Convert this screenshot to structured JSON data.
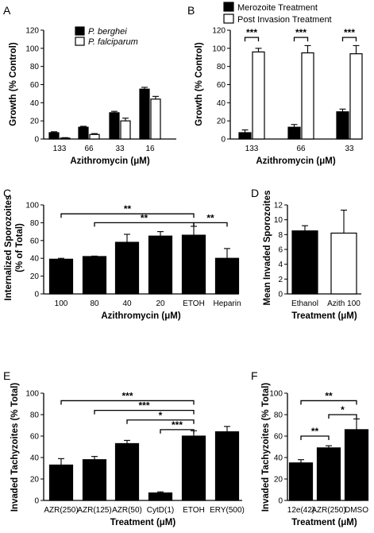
{
  "chart_data": [
    {
      "panel": "A",
      "type": "bar",
      "xlabel": "Azithromycin (μM)",
      "ylabel": "Growth (% Control)",
      "ylim": [
        0,
        120
      ],
      "yticks": [
        0,
        20,
        40,
        60,
        80,
        100,
        120
      ],
      "categories": [
        "133",
        "66",
        "33",
        "16"
      ],
      "series": [
        {
          "name": "P. berghei",
          "fill": "#000000",
          "values": [
            7,
            13,
            29,
            55
          ],
          "errors": [
            1,
            1,
            1.5,
            2
          ]
        },
        {
          "name": "P. falciparum",
          "fill": "#ffffff",
          "values": [
            1,
            5,
            20,
            44
          ],
          "errors": [
            0.5,
            1,
            3,
            3
          ]
        }
      ],
      "legend": "top-left"
    },
    {
      "panel": "B",
      "type": "bar",
      "xlabel": "Azithromycin (μM)",
      "ylabel": "Growth (% Control)",
      "ylim": [
        0,
        120
      ],
      "yticks": [
        0,
        20,
        40,
        60,
        80,
        100,
        120
      ],
      "categories": [
        "133",
        "66",
        "33"
      ],
      "series": [
        {
          "name": "Merozoite Treatment",
          "fill": "#000000",
          "values": [
            7,
            13,
            30
          ],
          "errors": [
            3,
            3,
            3
          ]
        },
        {
          "name": "Post Invasion Treatment",
          "fill": "#ffffff",
          "values": [
            96,
            95,
            94
          ],
          "errors": [
            4,
            8,
            9
          ]
        }
      ],
      "legend": "top",
      "significance": [
        {
          "label": "***",
          "from": 0,
          "to": 0
        },
        {
          "label": "***",
          "from": 1,
          "to": 1
        },
        {
          "label": "***",
          "from": 2,
          "to": 2
        }
      ]
    },
    {
      "panel": "C",
      "type": "bar",
      "xlabel": "Azithromycin (μM)",
      "ylabel_lines": [
        "Internalized Sporozoites",
        "(% of Total)"
      ],
      "ylim": [
        0,
        100
      ],
      "yticks": [
        0,
        20,
        40,
        60,
        80,
        100
      ],
      "categories": [
        "100",
        "80",
        "40",
        "20",
        "ETOH",
        "Heparin"
      ],
      "series": [
        {
          "fill": "#000000",
          "values": [
            39,
            42,
            58,
            65,
            66,
            40
          ],
          "errors": [
            1,
            0.5,
            9,
            5,
            10,
            11
          ]
        }
      ],
      "significance": [
        {
          "label": "**",
          "from": 0,
          "to": 4,
          "level": 90
        },
        {
          "label": "**",
          "from": 1,
          "to": 4,
          "level": 80
        },
        {
          "label": "**",
          "from": 4,
          "to": 5,
          "level": 80
        }
      ]
    },
    {
      "panel": "D",
      "type": "bar",
      "xlabel": "Treatment (μM)",
      "ylabel": "Mean Invaded Sporozoites",
      "ylim": [
        0,
        12
      ],
      "yticks": [
        0,
        2,
        4,
        6,
        8,
        10,
        12
      ],
      "categories": [
        "Ethanol",
        "Azith 100"
      ],
      "series": [
        {
          "fills": [
            "#000000",
            "#ffffff"
          ],
          "values": [
            8.5,
            8.2
          ],
          "errors": [
            0.7,
            3.1
          ]
        }
      ]
    },
    {
      "panel": "E",
      "type": "bar",
      "xlabel": "Treatment (μM)",
      "ylabel": "Invaded Tachyzoites (% Total)",
      "ylim": [
        0,
        100
      ],
      "yticks": [
        0,
        20,
        40,
        60,
        80,
        100
      ],
      "categories": [
        "AZR(250)",
        "AZR(125)",
        "AZR(50)",
        "CytD(1)",
        "ETOH",
        "ERY(500)"
      ],
      "series": [
        {
          "fill": "#000000",
          "values": [
            33,
            38,
            53,
            7,
            60,
            64
          ],
          "errors": [
            6,
            3,
            3,
            1,
            5,
            5
          ]
        }
      ],
      "significance": [
        {
          "label": "***",
          "from": 0,
          "to": 4,
          "level": 93
        },
        {
          "label": "***",
          "from": 1,
          "to": 4,
          "level": 84
        },
        {
          "label": "*",
          "from": 2,
          "to": 4,
          "level": 75
        },
        {
          "label": "***",
          "from": 3,
          "to": 4,
          "level": 66
        }
      ]
    },
    {
      "panel": "F",
      "type": "bar",
      "xlabel": "Treatment (μM)",
      "ylabel": "Invaded Tachyzoites (% Total)",
      "ylim": [
        0,
        100
      ],
      "yticks": [
        0,
        20,
        40,
        60,
        80,
        100
      ],
      "categories": [
        "12e(42)",
        "AZR(250)",
        "DMSO"
      ],
      "series": [
        {
          "fill": "#000000",
          "values": [
            35,
            49,
            66
          ],
          "errors": [
            3,
            2,
            10
          ]
        }
      ],
      "significance": [
        {
          "label": "**",
          "from": 0,
          "to": 2,
          "level": 93
        },
        {
          "label": "*",
          "from": 1,
          "to": 2,
          "level": 80
        },
        {
          "label": "**",
          "from": 0,
          "to": 1,
          "level": 60
        }
      ]
    }
  ]
}
